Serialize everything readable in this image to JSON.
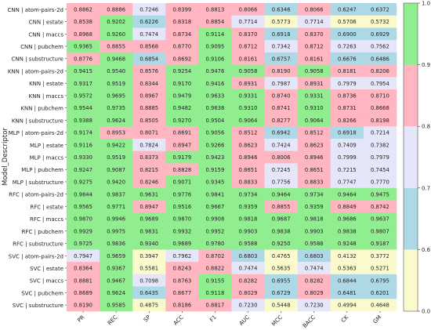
{
  "chart_data": {
    "type": "heatmap",
    "ylabel": "Model_Descriptor",
    "xlabel": "",
    "columns": [
      "PR",
      "REC",
      "SP",
      "ACC",
      "F1",
      "AUC",
      "MCC",
      "BACC",
      "CK",
      "GM"
    ],
    "rows": [
      {
        "label": "CNN | atom-pairs-2d",
        "values": [
          0.8862,
          0.8886,
          0.7246,
          0.8399,
          0.8813,
          0.8066,
          0.6346,
          0.8066,
          0.6247,
          0.6372
        ]
      },
      {
        "label": "CNN | estate",
        "values": [
          0.8538,
          0.9202,
          0.6226,
          0.8318,
          0.8854,
          0.7714,
          0.5773,
          0.7714,
          0.5706,
          0.5732
        ]
      },
      {
        "label": "CNN | maccs",
        "values": [
          0.8968,
          0.926,
          0.7474,
          0.8734,
          0.9114,
          0.837,
          0.6918,
          0.837,
          0.69,
          0.6929
        ]
      },
      {
        "label": "CNN | pubchem",
        "values": [
          0.9365,
          0.8855,
          0.8568,
          0.877,
          0.9095,
          0.8712,
          0.7342,
          0.8712,
          0.7263,
          0.7562
        ]
      },
      {
        "label": "CNN | substructure",
        "values": [
          0.8776,
          0.9468,
          0.6854,
          0.8692,
          0.9106,
          0.8161,
          0.6757,
          0.8161,
          0.6676,
          0.6486
        ]
      },
      {
        "label": "KNN | atom-pairs-2d",
        "values": [
          0.9415,
          0.954,
          0.8576,
          0.9254,
          0.9476,
          0.9058,
          0.819,
          0.9058,
          0.8181,
          0.8206
        ]
      },
      {
        "label": "KNN | estate",
        "values": [
          0.9317,
          0.9519,
          0.8344,
          0.917,
          0.9416,
          0.8931,
          0.7987,
          0.8931,
          0.7979,
          0.7954
        ]
      },
      {
        "label": "KNN | maccs",
        "values": [
          0.9572,
          0.9695,
          0.8967,
          0.9479,
          0.9633,
          0.9331,
          0.874,
          0.9331,
          0.8736,
          0.871
        ]
      },
      {
        "label": "KNN | pubchem",
        "values": [
          0.9544,
          0.9735,
          0.8885,
          0.9482,
          0.9638,
          0.931,
          0.8741,
          0.931,
          0.8731,
          0.8668
        ]
      },
      {
        "label": "KNN | substructure",
        "values": [
          0.9388,
          0.9624,
          0.8505,
          0.927,
          0.9504,
          0.9064,
          0.8277,
          0.9064,
          0.8266,
          0.8198
        ]
      },
      {
        "label": "MLP | atom-pairs-2d",
        "values": [
          0.9174,
          0.8953,
          0.8071,
          0.8691,
          0.9056,
          0.8512,
          0.6942,
          0.8512,
          0.6918,
          0.7214
        ]
      },
      {
        "label": "MLP | estate",
        "values": [
          0.9116,
          0.9422,
          0.7824,
          0.8947,
          0.9266,
          0.8623,
          0.7424,
          0.8623,
          0.7409,
          0.7382
        ]
      },
      {
        "label": "MLP | maccs",
        "values": [
          0.933,
          0.9519,
          0.8373,
          0.9179,
          0.9423,
          0.8946,
          0.8006,
          0.8946,
          0.7999,
          0.7979
        ]
      },
      {
        "label": "MLP | pubchem",
        "values": [
          0.9247,
          0.9087,
          0.8215,
          0.8828,
          0.9159,
          0.8651,
          0.7245,
          0.8651,
          0.7215,
          0.7454
        ]
      },
      {
        "label": "MLP | substructure",
        "values": [
          0.9275,
          0.942,
          0.8246,
          0.9071,
          0.9345,
          0.8833,
          0.7756,
          0.8833,
          0.7747,
          0.777
        ]
      },
      {
        "label": "RFC | atom-pairs-2d",
        "values": [
          0.9844,
          0.9837,
          0.9631,
          0.9776,
          0.9841,
          0.9734,
          0.9464,
          0.9734,
          0.9464,
          0.9475
        ]
      },
      {
        "label": "RFC | estate",
        "values": [
          0.9565,
          0.9771,
          0.8947,
          0.9516,
          0.9667,
          0.9359,
          0.8855,
          0.9359,
          0.8849,
          0.8742
        ]
      },
      {
        "label": "RFC | maccs",
        "values": [
          0.987,
          0.9946,
          0.9689,
          0.987,
          0.9908,
          0.9818,
          0.9687,
          0.9818,
          0.9686,
          0.9637
        ]
      },
      {
        "label": "RFC | pubchem",
        "values": [
          0.9929,
          0.9975,
          0.9831,
          0.9932,
          0.9952,
          0.9903,
          0.9838,
          0.9903,
          0.9838,
          0.9807
        ]
      },
      {
        "label": "RFC | substructure",
        "values": [
          0.9725,
          0.9836,
          0.934,
          0.9689,
          0.978,
          0.9588,
          0.925,
          0.9588,
          0.9248,
          0.9187
        ]
      },
      {
        "label": "SVC | atom-pairs-2d",
        "values": [
          0.7947,
          0.9659,
          0.3947,
          0.7962,
          0.8702,
          0.6803,
          0.4765,
          0.6803,
          0.4132,
          0.3772
        ]
      },
      {
        "label": "SVC | estate",
        "values": [
          0.8364,
          0.9367,
          0.5581,
          0.8243,
          0.8822,
          0.7474,
          0.5635,
          0.7474,
          0.5363,
          0.5271
        ]
      },
      {
        "label": "SVC | maccs",
        "values": [
          0.8881,
          0.9467,
          0.7098,
          0.8763,
          0.9155,
          0.8282,
          0.6955,
          0.8282,
          0.6844,
          0.6795
        ]
      },
      {
        "label": "SVC | pubchem",
        "values": [
          0.8689,
          0.9624,
          0.6435,
          0.8677,
          0.9118,
          0.8029,
          0.6729,
          0.8029,
          0.6481,
          0.6201
        ]
      },
      {
        "label": "SVC | substructure",
        "values": [
          0.819,
          0.9585,
          0.4875,
          0.8186,
          0.8817,
          0.723,
          0.5448,
          0.723,
          0.4994,
          0.4648
        ]
      }
    ],
    "colorbar": {
      "ticks": [
        0.0,
        0.6,
        0.7,
        0.8,
        0.9,
        1.0
      ],
      "tick_labels": [
        "0.0",
        "0.6",
        "0.7",
        "0.8",
        "0.9",
        "1.0"
      ],
      "bins": [
        {
          "min": 0.0,
          "max": 0.6,
          "color": "#fafacd"
        },
        {
          "min": 0.6,
          "max": 0.7,
          "color": "#add8e6"
        },
        {
          "min": 0.7,
          "max": 0.8,
          "color": "#e6e6fa"
        },
        {
          "min": 0.8,
          "max": 0.9,
          "color": "#ffb6c1"
        },
        {
          "min": 0.9,
          "max": 1.0,
          "color": "#90ee90"
        }
      ]
    },
    "grid": false,
    "legend": "colorbar-right"
  }
}
